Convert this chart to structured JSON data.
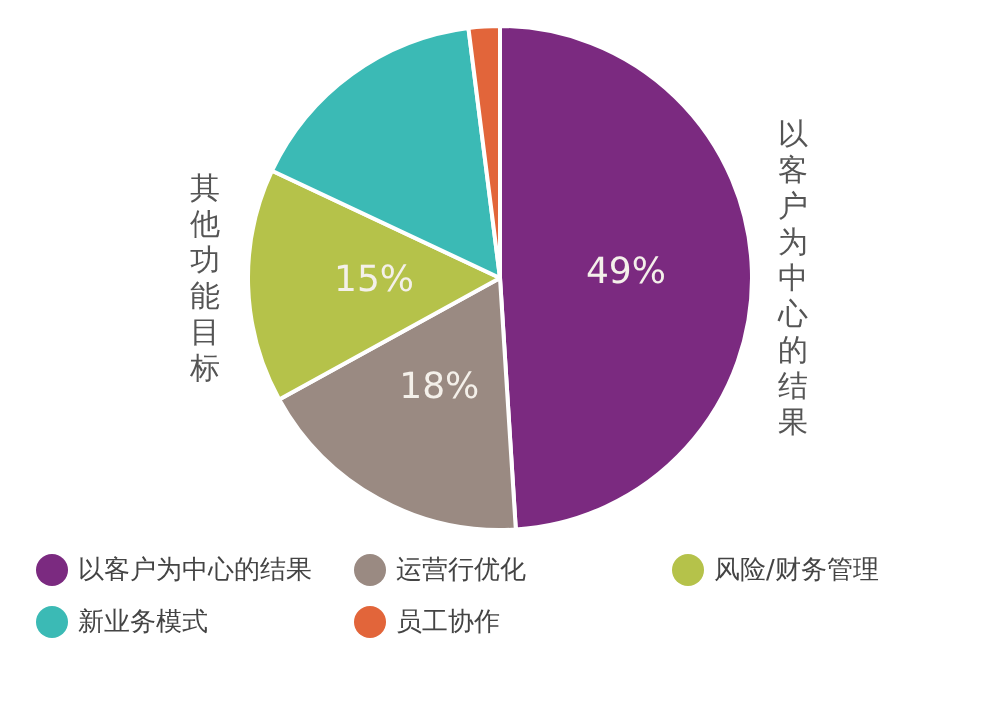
{
  "chart_data": {
    "type": "pie",
    "categories": [
      "以客户为中心的结果",
      "运营行优化",
      "风险/财务管理",
      "新业务模式",
      "员工协作"
    ],
    "values": [
      49,
      18,
      15,
      16,
      2
    ],
    "colors": [
      "#7b2a80",
      "#9a8a82",
      "#b5c24a",
      "#3bbab5",
      "#e2653a"
    ],
    "value_labels": [
      "49%",
      "18%",
      "15%",
      null,
      null
    ],
    "annotations": [
      "其他功能目标",
      "以客户为中心的结果"
    ],
    "legend": "bottom"
  }
}
